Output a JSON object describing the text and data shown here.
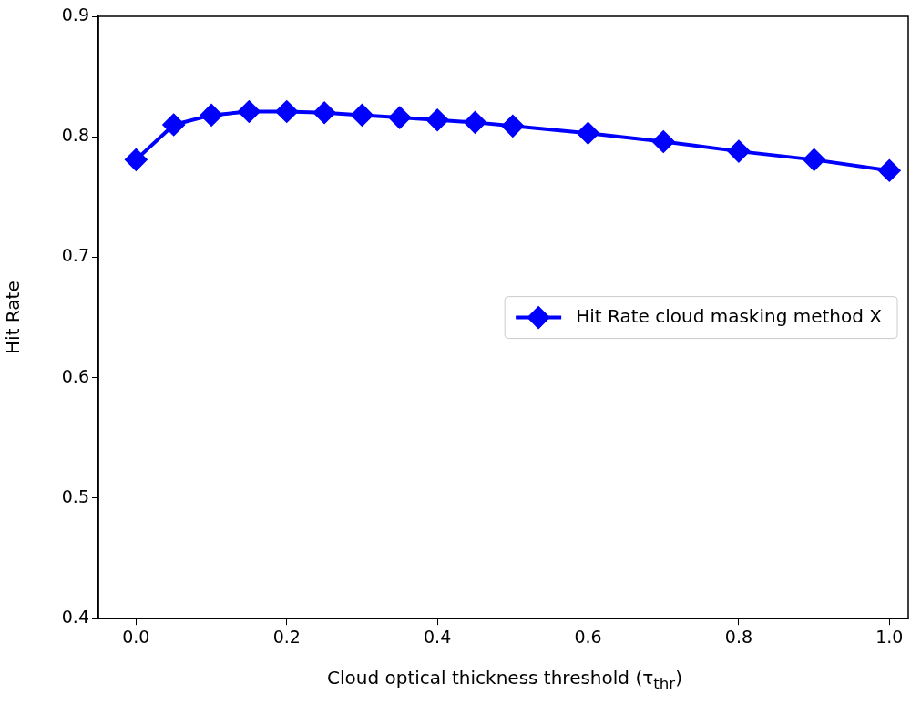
{
  "chart_data": {
    "type": "line",
    "xlabel": "Cloud optical thickness threshold (τ$_{thr}$)",
    "ylabel": "Hit Rate",
    "x": [
      0.0,
      0.05,
      0.1,
      0.15,
      0.2,
      0.25,
      0.3,
      0.35,
      0.4,
      0.45,
      0.5,
      0.6,
      0.7,
      0.8,
      0.9,
      1.0
    ],
    "series": [
      {
        "name": "Hit Rate cloud masking method X",
        "color": "#0000ff",
        "values": [
          0.781,
          0.81,
          0.818,
          0.821,
          0.821,
          0.82,
          0.818,
          0.816,
          0.814,
          0.812,
          0.809,
          0.803,
          0.796,
          0.788,
          0.781,
          0.772
        ]
      }
    ],
    "xlim": [
      -0.05,
      1.025
    ],
    "xticks": [
      {
        "value": 0,
        "label": "0.0"
      },
      0.2,
      0.4,
      0.6,
      0.8,
      {
        "value": 1,
        "label": "1.0"
      }
    ],
    "ylim": [
      0.4,
      0.9
    ],
    "yticks": [
      0.4,
      0.5,
      0.6,
      0.7,
      0.8,
      0.9
    ],
    "grid": false,
    "legend": "right",
    "marker": "diamond",
    "line_style": "solid"
  }
}
